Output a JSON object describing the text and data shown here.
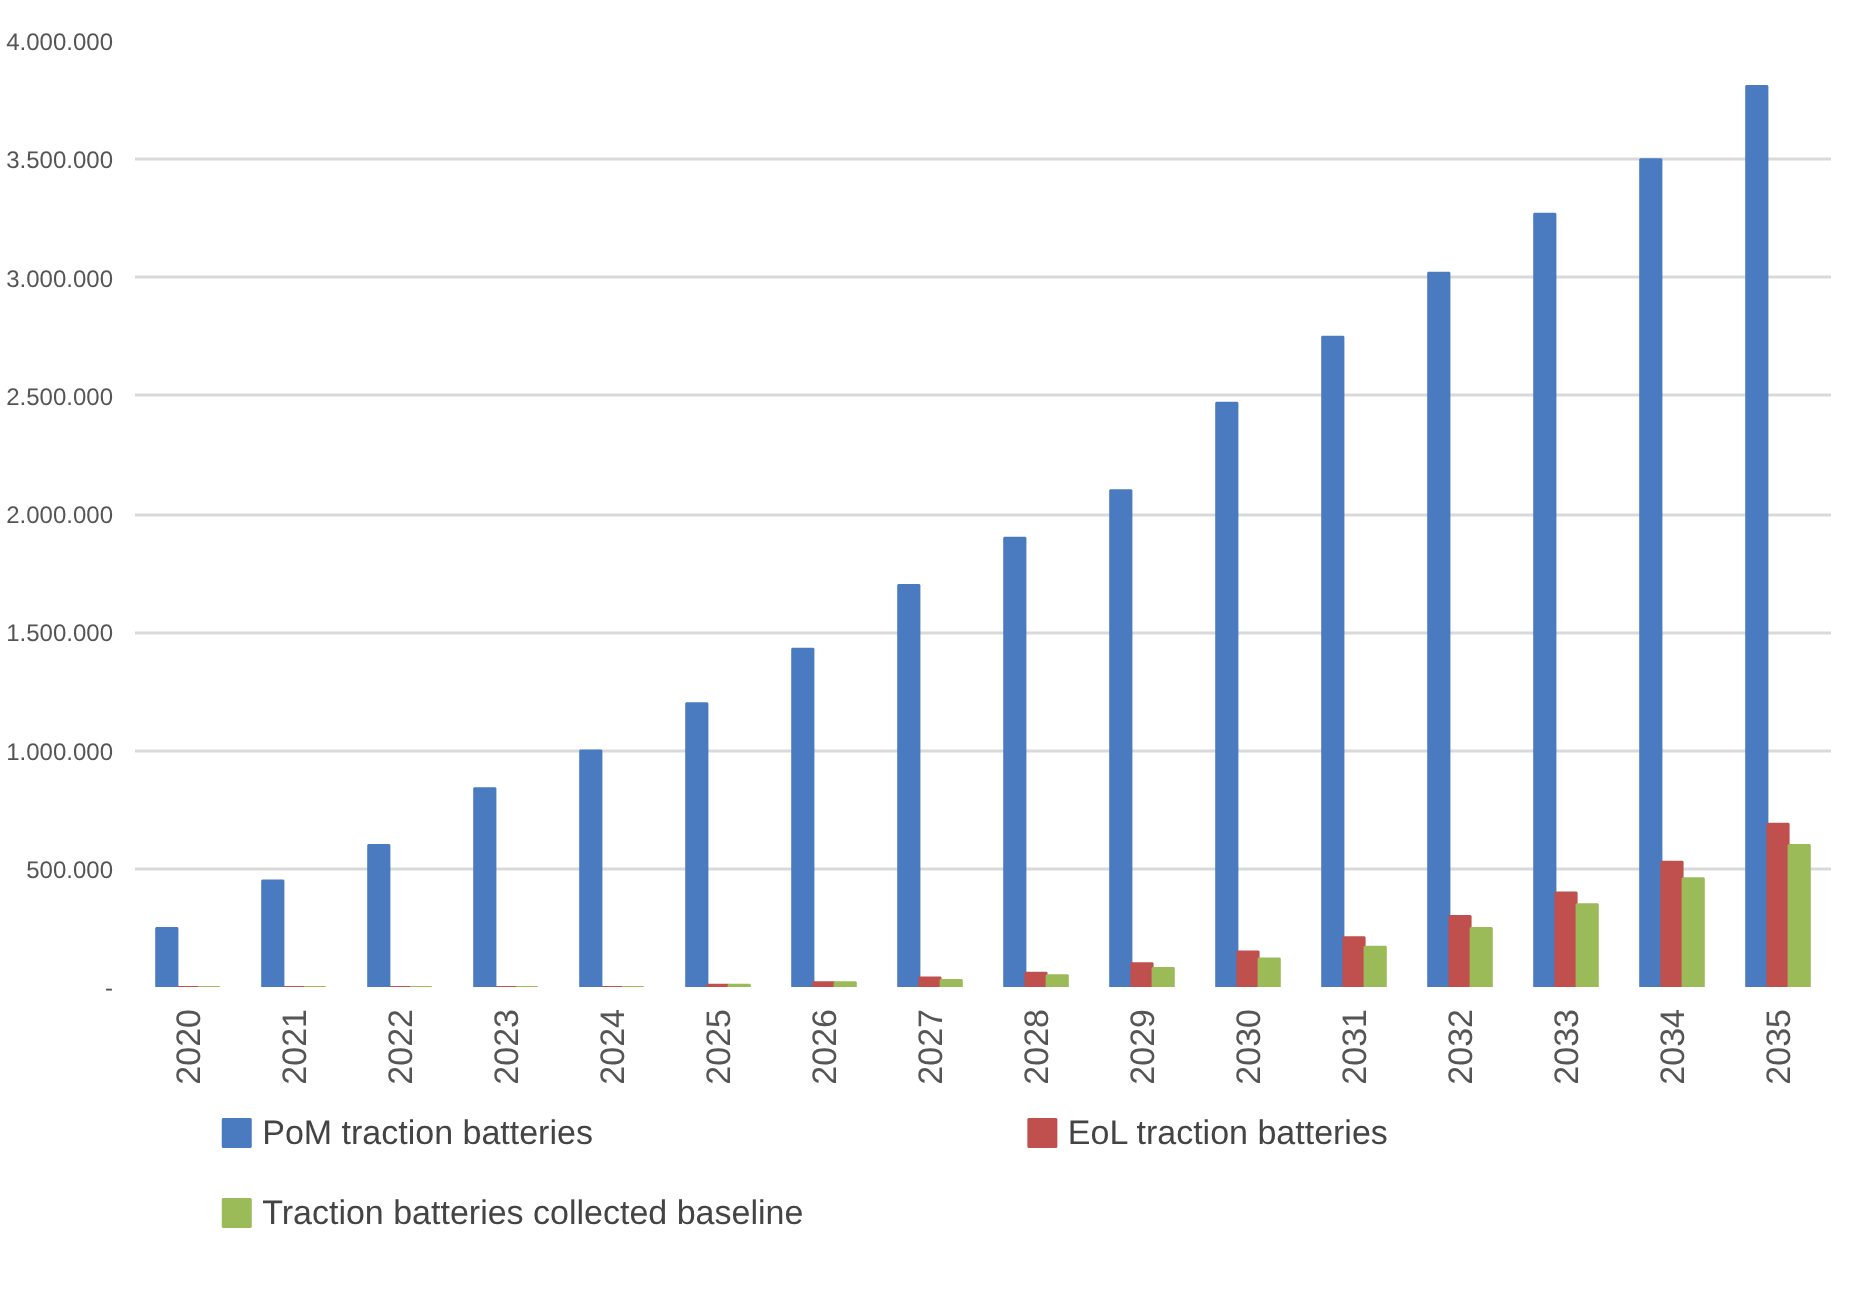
{
  "chart_data": {
    "type": "bar",
    "categories": [
      "2020",
      "2021",
      "2022",
      "2023",
      "2024",
      "2025",
      "2026",
      "2027",
      "2028",
      "2029",
      "2030",
      "2031",
      "2032",
      "2033",
      "2034",
      "2035"
    ],
    "series": [
      {
        "name": "PoM traction batteries",
        "color": "#4a7bc0",
        "values": [
          250000,
          450000,
          600000,
          840000,
          1000000,
          1200000,
          1430000,
          1700000,
          1900000,
          2100000,
          2470000,
          2750000,
          3020000,
          3270000,
          3500000,
          3810000
        ]
      },
      {
        "name": "EoL traction batteries",
        "color": "#c0504d",
        "values": [
          0,
          0,
          0,
          0,
          0,
          10000,
          20000,
          40000,
          60000,
          100000,
          150000,
          210000,
          300000,
          400000,
          530000,
          690000
        ]
      },
      {
        "name": "Traction batteries collected baseline",
        "color": "#9bbb59",
        "values": [
          0,
          0,
          0,
          0,
          0,
          10000,
          20000,
          30000,
          50000,
          80000,
          120000,
          170000,
          250000,
          350000,
          460000,
          600000
        ]
      }
    ],
    "ylim": [
      0,
      4000000
    ],
    "yticks": [
      {
        "value": 0,
        "label": "-"
      },
      {
        "value": 500000,
        "label": "500.000"
      },
      {
        "value": 1000000,
        "label": "1.000.000"
      },
      {
        "value": 1500000,
        "label": "1.500.000"
      },
      {
        "value": 2000000,
        "label": "2.000.000"
      },
      {
        "value": 2500000,
        "label": "2.500.000"
      },
      {
        "value": 3000000,
        "label": "3.000.000"
      },
      {
        "value": 3500000,
        "label": "3.500.000"
      },
      {
        "value": 4000000,
        "label": "4.000.000"
      }
    ],
    "grid": "y",
    "legend": "bottom"
  }
}
